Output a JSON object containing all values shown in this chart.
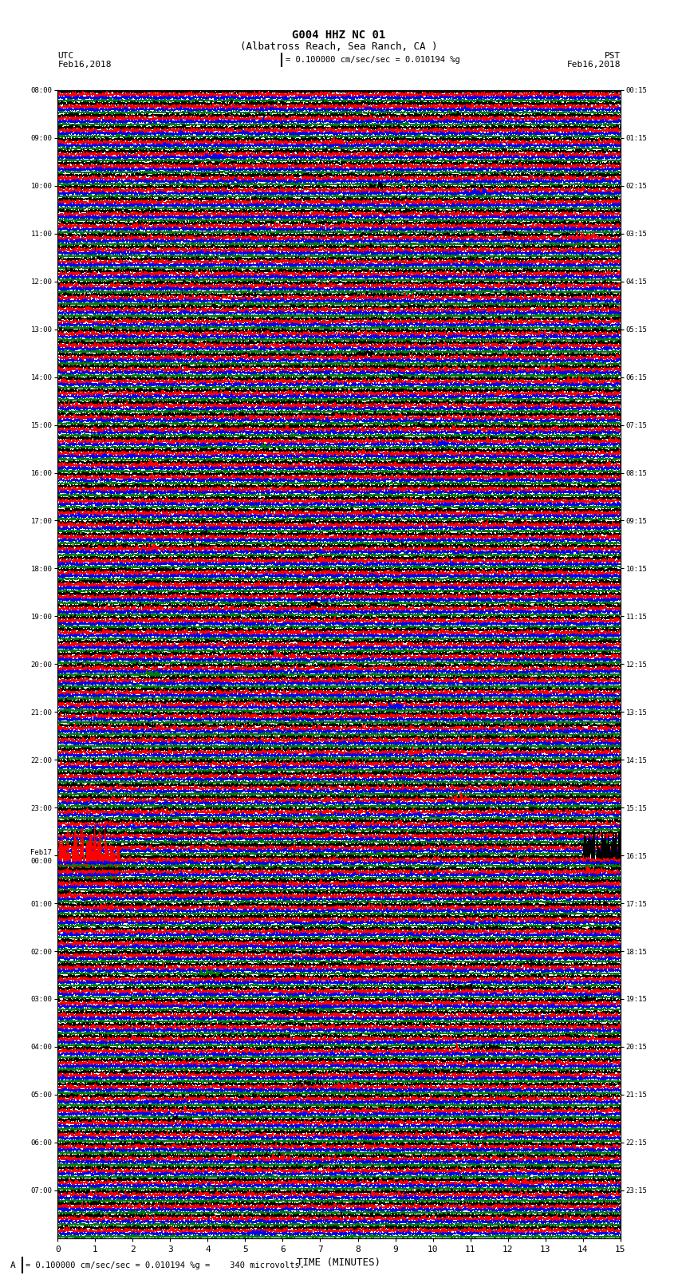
{
  "title_line1": "G004 HHZ NC 01",
  "title_line2": "(Albatross Reach, Sea Ranch, CA )",
  "scale_text": "= 0.100000 cm/sec/sec = 0.010194 %g",
  "bottom_text": "= 0.100000 cm/sec/sec = 0.010194 %g =    340 microvolts.",
  "utc_label": "UTC",
  "pst_label": "PST",
  "date_left": "Feb16,2018",
  "date_right": "Feb16,2018",
  "xlabel": "TIME (MINUTES)",
  "left_times_utc": [
    "08:00",
    "",
    "",
    "",
    "09:00",
    "",
    "",
    "",
    "10:00",
    "",
    "",
    "",
    "11:00",
    "",
    "",
    "",
    "12:00",
    "",
    "",
    "",
    "13:00",
    "",
    "",
    "",
    "14:00",
    "",
    "",
    "",
    "15:00",
    "",
    "",
    "",
    "16:00",
    "",
    "",
    "",
    "17:00",
    "",
    "",
    "",
    "18:00",
    "",
    "",
    "",
    "19:00",
    "",
    "",
    "",
    "20:00",
    "",
    "",
    "",
    "21:00",
    "",
    "",
    "",
    "22:00",
    "",
    "",
    "",
    "23:00",
    "",
    "",
    "",
    "Feb17\n00:00",
    "",
    "",
    "",
    "01:00",
    "",
    "",
    "",
    "02:00",
    "",
    "",
    "",
    "03:00",
    "",
    "",
    "",
    "04:00",
    "",
    "",
    "",
    "05:00",
    "",
    "",
    "",
    "06:00",
    "",
    "",
    "",
    "07:00",
    "",
    "",
    ""
  ],
  "right_times_pst": [
    "00:15",
    "",
    "",
    "",
    "01:15",
    "",
    "",
    "",
    "02:15",
    "",
    "",
    "",
    "03:15",
    "",
    "",
    "",
    "04:15",
    "",
    "",
    "",
    "05:15",
    "",
    "",
    "",
    "06:15",
    "",
    "",
    "",
    "07:15",
    "",
    "",
    "",
    "08:15",
    "",
    "",
    "",
    "09:15",
    "",
    "",
    "",
    "10:15",
    "",
    "",
    "",
    "11:15",
    "",
    "",
    "",
    "12:15",
    "",
    "",
    "",
    "13:15",
    "",
    "",
    "",
    "14:15",
    "",
    "",
    "",
    "15:15",
    "",
    "",
    "",
    "16:15",
    "",
    "",
    "",
    "17:15",
    "",
    "",
    "",
    "18:15",
    "",
    "",
    "",
    "19:15",
    "",
    "",
    "",
    "20:15",
    "",
    "",
    "",
    "21:15",
    "",
    "",
    "",
    "22:15",
    "",
    "",
    "",
    "23:15",
    "",
    "",
    ""
  ],
  "n_rows": 96,
  "n_cols": 4,
  "colors": [
    "black",
    "red",
    "blue",
    "green"
  ],
  "noise_scale": [
    0.3,
    0.38,
    0.28,
    0.2
  ],
  "background_color": "white",
  "trace_lw": 0.4,
  "xmin": 0,
  "xmax": 15,
  "xticks": [
    0,
    1,
    2,
    3,
    4,
    5,
    6,
    7,
    8,
    9,
    10,
    11,
    12,
    13,
    14,
    15
  ],
  "grid_color": "#888888",
  "grid_lw": 0.4
}
